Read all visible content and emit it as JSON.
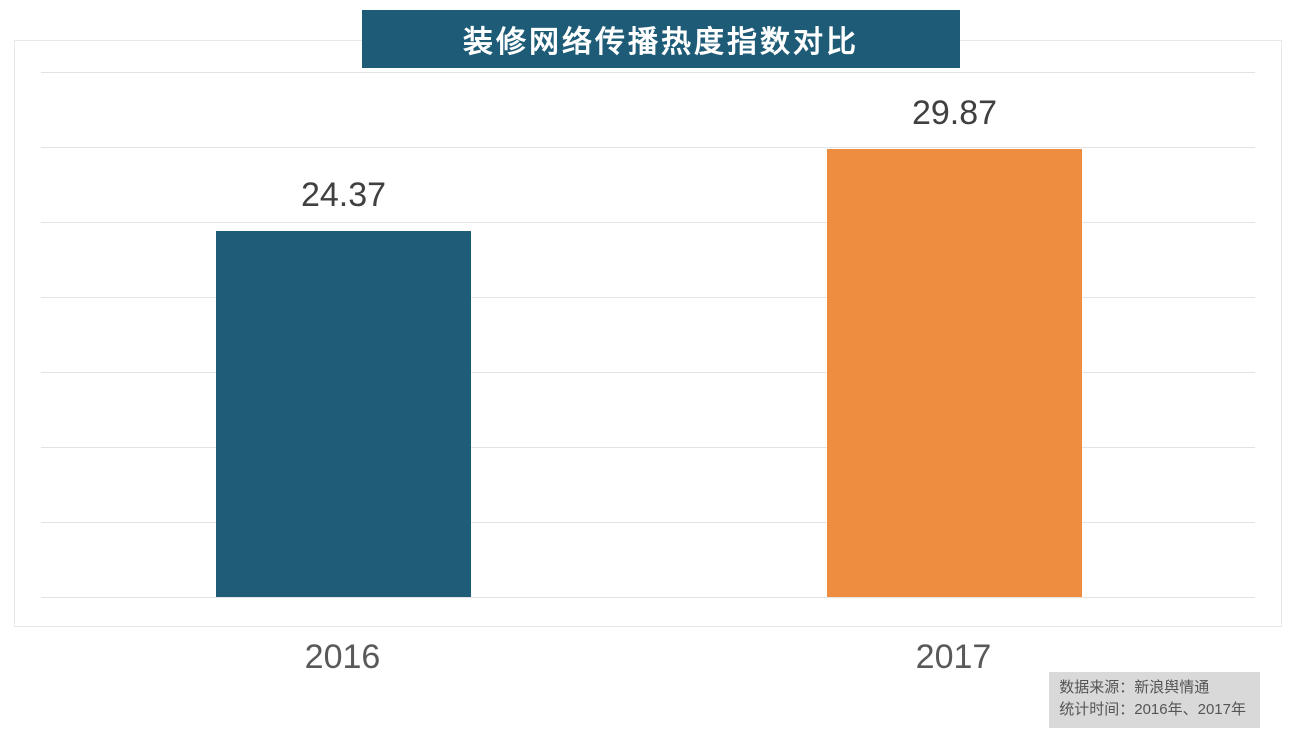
{
  "chart_data": {
    "type": "bar",
    "title": "装修网络传播热度指数对比",
    "categories": [
      "2016",
      "2017"
    ],
    "values": [
      24.37,
      29.87
    ],
    "value_labels": [
      "24.37",
      "29.87"
    ],
    "series": [
      {
        "name": "装修网络传播热度指数",
        "values": [
          24.37,
          29.87
        ]
      }
    ],
    "xlabel": "",
    "ylabel": "",
    "ylim": [
      0,
      35
    ],
    "gridline_interval": 5,
    "grid": true,
    "legend": "none",
    "bar_colors": [
      "#1f5c78",
      "#ee8c40"
    ]
  },
  "source_box": {
    "line1": "数据来源：新浪舆情通",
    "line2": "统计时间：2016年、2017年"
  },
  "colors": {
    "title_bg": "#1e5b77",
    "title_text": "#ffffff",
    "bar_2016": "#1f5c78",
    "bar_2017": "#ee8c40",
    "gridline": "#e3e3e3",
    "source_bg": "#d9d9d9",
    "value_label_text": "#404040",
    "axis_label_text": "#595959"
  }
}
